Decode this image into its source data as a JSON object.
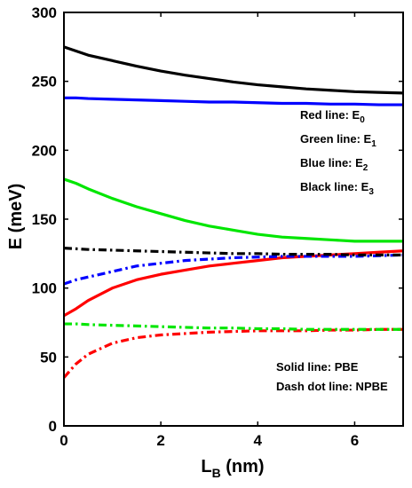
{
  "chart_data": {
    "type": "line",
    "title": "",
    "xlabel_main": "L",
    "xlabel_sub": "B",
    "xlabel_unit": " (nm)",
    "ylabel": "E (meV)",
    "xlim": [
      0,
      7
    ],
    "ylim": [
      0,
      300
    ],
    "xticks": [
      0,
      2,
      4,
      6
    ],
    "yticks": [
      0,
      50,
      100,
      150,
      200,
      250,
      300
    ],
    "grid": false,
    "colors": {
      "red": "#ff0000",
      "green": "#00e600",
      "blue": "#0000ff",
      "black": "#000000"
    },
    "x": [
      0,
      0.25,
      0.5,
      1,
      1.5,
      2,
      2.5,
      3,
      3.5,
      4,
      4.5,
      5,
      5.5,
      6,
      6.5,
      7
    ],
    "series": [
      {
        "key": "pbe_e0",
        "color": "red",
        "style": "solid",
        "values": [
          80,
          85,
          91,
          100,
          106,
          110,
          113,
          116,
          118,
          120,
          122,
          123,
          124,
          125,
          126,
          127
        ]
      },
      {
        "key": "pbe_e1",
        "color": "green",
        "style": "solid",
        "values": [
          179,
          176,
          172,
          165,
          159,
          154,
          149,
          145,
          142,
          139,
          137,
          136,
          135,
          134,
          134,
          134
        ]
      },
      {
        "key": "pbe_e2",
        "color": "blue",
        "style": "solid",
        "values": [
          238,
          238,
          237.5,
          237,
          236.5,
          236,
          235.5,
          235,
          235,
          234.5,
          234,
          234,
          233.5,
          233.5,
          233,
          233
        ]
      },
      {
        "key": "pbe_e3",
        "color": "black",
        "style": "solid",
        "values": [
          275,
          272,
          269,
          265,
          261,
          257.5,
          254.5,
          252,
          249.5,
          247.5,
          246,
          244.5,
          243.5,
          242.5,
          242,
          241.5
        ]
      },
      {
        "key": "npbe_e0",
        "color": "red",
        "style": "dashdot",
        "values": [
          35,
          45,
          52,
          60,
          64,
          66,
          67,
          68,
          68.5,
          69,
          69,
          69,
          69.5,
          69.5,
          70,
          70
        ]
      },
      {
        "key": "npbe_e1",
        "color": "green",
        "style": "dashdot",
        "values": [
          74,
          74,
          73.5,
          73,
          72.5,
          72,
          71.5,
          71,
          71,
          70.5,
          70.5,
          70,
          70,
          70,
          70,
          70
        ]
      },
      {
        "key": "npbe_e2",
        "color": "blue",
        "style": "dashdot",
        "values": [
          103,
          106,
          108,
          112,
          116,
          118,
          120,
          121,
          122,
          122.5,
          123,
          123,
          123,
          123,
          123.5,
          124
        ]
      },
      {
        "key": "npbe_e3",
        "color": "black",
        "style": "dashdot",
        "values": [
          129,
          128.5,
          128,
          127.5,
          127,
          126.5,
          126,
          125.5,
          125,
          125,
          124.5,
          124.5,
          124.5,
          124,
          124,
          124
        ]
      }
    ],
    "legend_top": {
      "placement": "top-right",
      "entries": [
        {
          "text": "Red line: E",
          "sub": "0"
        },
        {
          "text": "Green line: E",
          "sub": "1"
        },
        {
          "text": "Blue line: E",
          "sub": "2"
        },
        {
          "text": "Black line: E",
          "sub": "3"
        }
      ]
    },
    "legend_bottom": {
      "placement": "bottom-right",
      "entries": [
        {
          "text": "Solid line: PBE"
        },
        {
          "text": "Dash dot line: NPBE"
        }
      ]
    }
  }
}
